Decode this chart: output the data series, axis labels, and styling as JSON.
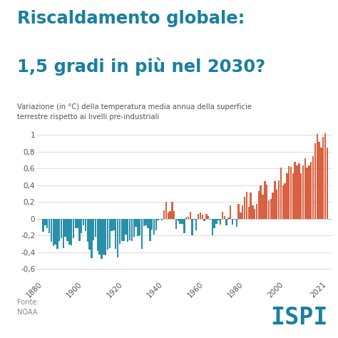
{
  "title_line1": "Riscaldamento globale:",
  "title_line2": "1,5 gradi in più nel 2030?",
  "subtitle": "Variazione (in °C) della temperatura media annua della superficie\nterrestre rispetto ai livelli pre-industriali",
  "source_label": "Fonte:\nNOAA",
  "ispi_label": "ISPI",
  "bg_color": "#ffffff",
  "title_color": "#1a7fa0",
  "subtitle_color": "#555555",
  "bar_color_neg": "#2a8fa8",
  "bar_color_pos": "#d96040",
  "grid_color": "#cccccc",
  "ylim": [
    -0.72,
    1.1
  ],
  "yticks": [
    -0.6,
    -0.4,
    -0.2,
    0,
    0.2,
    0.4,
    0.6,
    0.8,
    1
  ],
  "ytick_labels": [
    "-0,6",
    "-0,4",
    "-0,2",
    "0",
    "0,2",
    "0,4",
    "0,6",
    "0,8",
    "1"
  ],
  "xticks": [
    1880,
    1900,
    1920,
    1940,
    1960,
    1980,
    2000,
    2021
  ],
  "years": [
    1880,
    1881,
    1882,
    1883,
    1884,
    1885,
    1886,
    1887,
    1888,
    1889,
    1890,
    1891,
    1892,
    1893,
    1894,
    1895,
    1896,
    1897,
    1898,
    1899,
    1900,
    1901,
    1902,
    1903,
    1904,
    1905,
    1906,
    1907,
    1908,
    1909,
    1910,
    1911,
    1912,
    1913,
    1914,
    1915,
    1916,
    1917,
    1918,
    1919,
    1920,
    1921,
    1922,
    1923,
    1924,
    1925,
    1926,
    1927,
    1928,
    1929,
    1930,
    1931,
    1932,
    1933,
    1934,
    1935,
    1936,
    1937,
    1938,
    1939,
    1940,
    1941,
    1942,
    1943,
    1944,
    1945,
    1946,
    1947,
    1948,
    1949,
    1950,
    1951,
    1952,
    1953,
    1954,
    1955,
    1956,
    1957,
    1958,
    1959,
    1960,
    1961,
    1962,
    1963,
    1964,
    1965,
    1966,
    1967,
    1968,
    1969,
    1970,
    1971,
    1972,
    1973,
    1974,
    1975,
    1976,
    1977,
    1978,
    1979,
    1980,
    1981,
    1982,
    1983,
    1984,
    1985,
    1986,
    1987,
    1988,
    1989,
    1990,
    1991,
    1992,
    1993,
    1994,
    1995,
    1996,
    1997,
    1998,
    1999,
    2000,
    2001,
    2002,
    2003,
    2004,
    2005,
    2006,
    2007,
    2008,
    2009,
    2010,
    2011,
    2012,
    2013,
    2014,
    2015,
    2016,
    2017,
    2018,
    2019,
    2020,
    2021
  ],
  "values": [
    -0.16,
    -0.08,
    -0.11,
    -0.17,
    -0.28,
    -0.33,
    -0.31,
    -0.36,
    -0.27,
    -0.23,
    -0.35,
    -0.22,
    -0.27,
    -0.31,
    -0.32,
    -0.23,
    -0.11,
    -0.11,
    -0.27,
    -0.17,
    -0.08,
    -0.15,
    -0.28,
    -0.37,
    -0.47,
    -0.26,
    -0.22,
    -0.39,
    -0.43,
    -0.48,
    -0.43,
    -0.44,
    -0.37,
    -0.35,
    -0.15,
    -0.14,
    -0.36,
    -0.46,
    -0.3,
    -0.27,
    -0.27,
    -0.19,
    -0.28,
    -0.26,
    -0.27,
    -0.22,
    -0.1,
    -0.21,
    -0.2,
    -0.36,
    -0.09,
    -0.08,
    -0.11,
    -0.27,
    -0.13,
    -0.19,
    -0.14,
    -0.02,
    -0.0,
    -0.02,
    0.1,
    0.2,
    0.07,
    0.09,
    0.2,
    0.09,
    -0.12,
    -0.03,
    -0.06,
    -0.06,
    -0.17,
    0.01,
    0.02,
    0.08,
    -0.2,
    -0.01,
    -0.14,
    0.06,
    0.07,
    0.05,
    -0.03,
    0.06,
    0.03,
    -0.01,
    -0.2,
    -0.11,
    -0.06,
    -0.02,
    -0.07,
    0.08,
    0.03,
    -0.08,
    0.01,
    0.16,
    -0.07,
    -0.01,
    -0.1,
    0.18,
    0.07,
    0.16,
    0.26,
    0.32,
    0.14,
    0.31,
    0.16,
    0.12,
    0.18,
    0.33,
    0.4,
    0.29,
    0.45,
    0.41,
    0.22,
    0.24,
    0.31,
    0.45,
    0.35,
    0.46,
    0.61,
    0.4,
    0.42,
    0.54,
    0.63,
    0.62,
    0.54,
    0.68,
    0.64,
    0.66,
    0.54,
    0.64,
    0.72,
    0.61,
    0.64,
    0.68,
    0.75,
    0.9,
    1.01,
    0.92,
    0.85,
    0.98,
    1.02,
    0.85
  ]
}
